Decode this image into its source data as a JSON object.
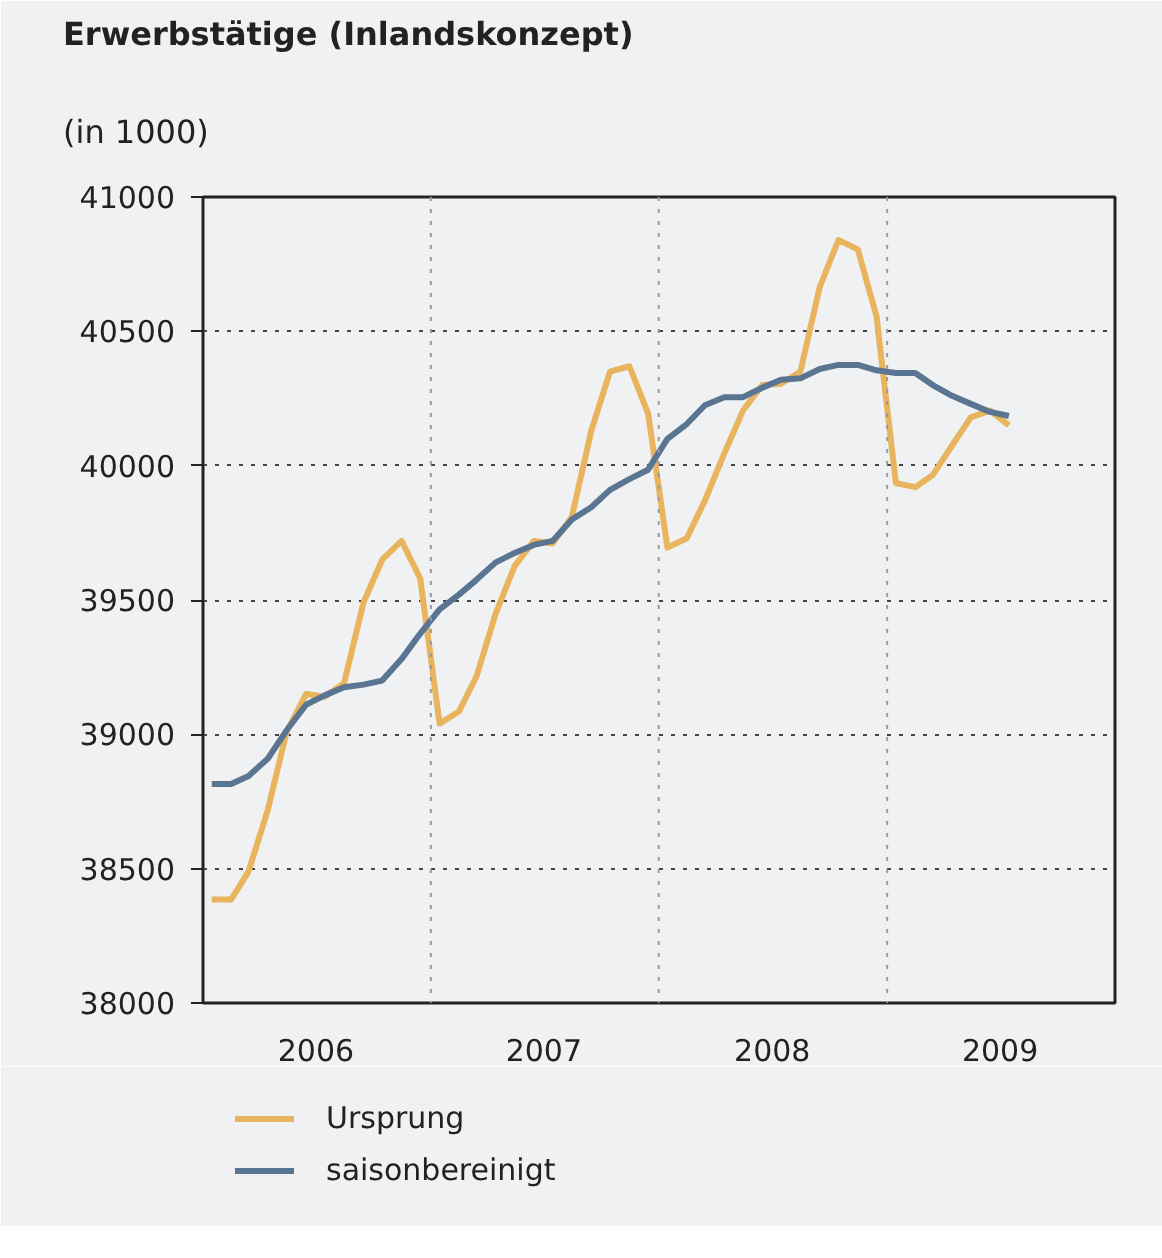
{
  "chart_data": {
    "type": "line",
    "title": "Erwerbstätige (Inlandskonzept)",
    "subtitle": "(in 1000)",
    "x": [
      "2006-01-15",
      "2006-02-15",
      "2006-03-15",
      "2006-04-15",
      "2006-05-15",
      "2006-06-15",
      "2006-07-15",
      "2006-08-15",
      "2006-09-15",
      "2006-10-15",
      "2006-11-15",
      "2006-12-15",
      "2007-01-15",
      "2007-02-15",
      "2007-03-15",
      "2007-04-15",
      "2007-05-15",
      "2007-06-15",
      "2007-07-15",
      "2007-08-15",
      "2007-09-15",
      "2007-10-15",
      "2007-11-15",
      "2007-12-15",
      "2008-01-15",
      "2008-02-15",
      "2008-03-15",
      "2008-04-15",
      "2008-05-15",
      "2008-06-15",
      "2008-07-15",
      "2008-08-15",
      "2008-09-15",
      "2008-10-15",
      "2008-11-15",
      "2008-12-15",
      "2009-01-15",
      "2009-02-15",
      "2009-03-15",
      "2009-04-15",
      "2009-05-15",
      "2009-06-15",
      "2009-07-15"
    ],
    "series": [
      {
        "name": "Ursprung",
        "color": "#e8b45e",
        "values": [
          38385,
          38385,
          38490,
          38720,
          39010,
          39150,
          39140,
          39190,
          39490,
          39650,
          39720,
          39580,
          39040,
          39085,
          39215,
          39450,
          39625,
          39720,
          39710,
          39810,
          40130,
          40350,
          40370,
          40195,
          39695,
          39730,
          39870,
          40045,
          40205,
          40300,
          40305,
          40350,
          40665,
          40840,
          40805,
          40555,
          39935,
          39920,
          39965,
          40075,
          40180,
          40205,
          40150
        ]
      },
      {
        "name": "saisonbereinigt",
        "color": "#5a7591",
        "values": [
          38815,
          38815,
          38845,
          38910,
          39015,
          39110,
          39145,
          39175,
          39185,
          39200,
          39280,
          39375,
          39465,
          39520,
          39575,
          39640,
          39675,
          39705,
          39720,
          39800,
          39845,
          39910,
          39950,
          39985,
          40100,
          40155,
          40225,
          40255,
          40255,
          40290,
          40320,
          40325,
          40360,
          40375,
          40375,
          40355,
          40345,
          40345,
          40300,
          40260,
          40230,
          40200,
          40185
        ]
      }
    ],
    "xlim": [
      "2006-01-01",
      "2010-01-01"
    ],
    "xticks": [
      {
        "value": "2006-07-01",
        "label": "2006"
      },
      {
        "value": "2007-07-01",
        "label": "2007"
      },
      {
        "value": "2008-07-01",
        "label": "2008"
      },
      {
        "value": "2009-07-01",
        "label": "2009"
      }
    ],
    "ylim": [
      38000,
      41000
    ],
    "yticks": [
      38000,
      38500,
      39000,
      39500,
      40000,
      40500,
      41000
    ],
    "ref_lines": [
      {
        "axis": "x",
        "value": "2007-01-01",
        "color": "#999999",
        "line_style": "dotted"
      },
      {
        "axis": "x",
        "value": "2008-01-01",
        "color": "#999999",
        "line_style": "dotted"
      },
      {
        "axis": "x",
        "value": "2009-01-01",
        "color": "#999999",
        "line_style": "dotted"
      }
    ],
    "grid": "y",
    "legend": "bottom",
    "line_style": "solid",
    "marker": "none"
  }
}
